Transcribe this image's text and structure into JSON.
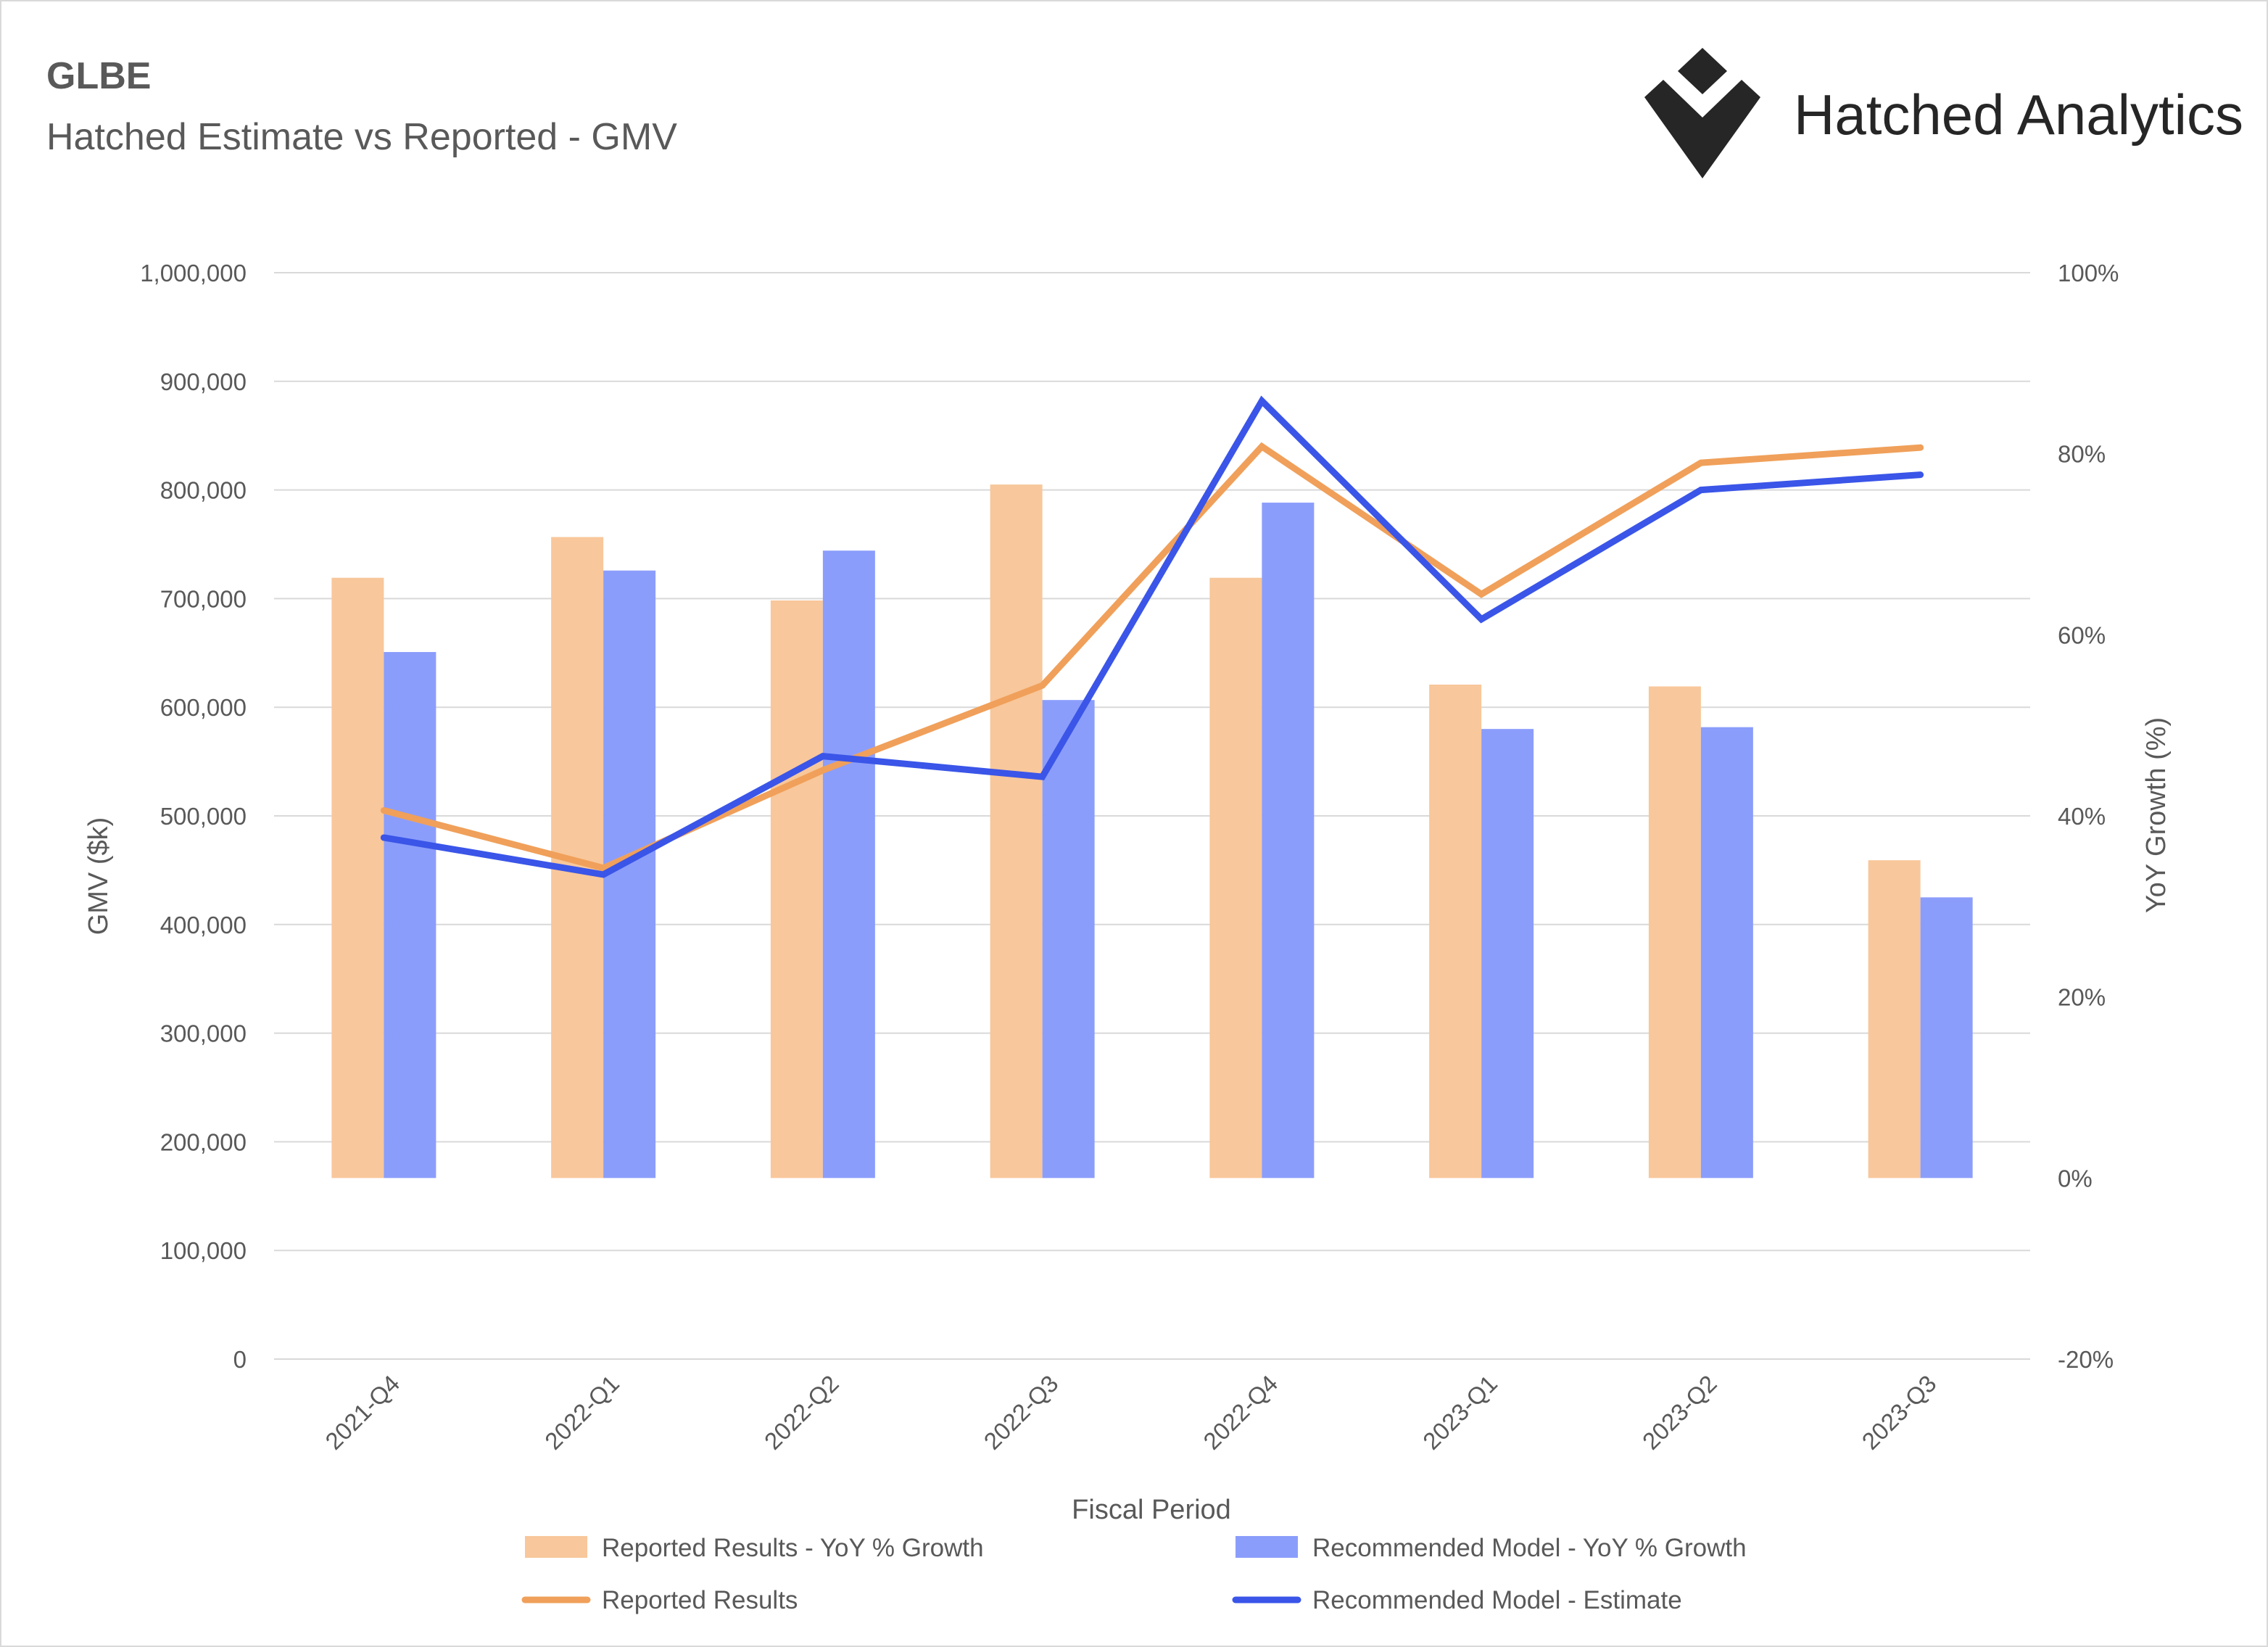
{
  "header": {
    "title": "GLBE",
    "subtitle": "Hatched Estimate vs Reported - GMV",
    "brand_name": "Hatched Analytics",
    "logo_icon": "hatched-analytics-logo-icon"
  },
  "chart_data": {
    "type": "bar",
    "title": "GLBE",
    "subtitle": "Hatched Estimate vs Reported - GMV",
    "xlabel": "Fiscal Period",
    "ylabel": "GMV ($k)",
    "y2label": "YoY Growth (%)",
    "categories": [
      "2021-Q4",
      "2022-Q1",
      "2022-Q2",
      "2022-Q3",
      "2022-Q4",
      "2023-Q1",
      "2023-Q2",
      "2023-Q3"
    ],
    "ylim": [
      0,
      1000000
    ],
    "y2lim": [
      -20,
      100
    ],
    "y_ticks": [
      "0",
      "100,000",
      "200,000",
      "300,000",
      "400,000",
      "500,000",
      "600,000",
      "700,000",
      "800,000",
      "900,000",
      "1,000,000"
    ],
    "y2_ticks": [
      "-20%",
      "0%",
      "20%",
      "40%",
      "60%",
      "80%",
      "100%"
    ],
    "grid": true,
    "legend_position": "bottom",
    "series": [
      {
        "name": "Reported Results - YoY % Growth",
        "type": "bar",
        "axis": "right",
        "color": "#f8c79b",
        "values": [
          66.3,
          70.8,
          63.8,
          76.6,
          66.3,
          54.5,
          54.3,
          35.1
        ]
      },
      {
        "name": "Recommended Model - YoY % Growth",
        "type": "bar",
        "axis": "right",
        "color": "#8b9dfb",
        "values": [
          58.1,
          67.1,
          69.3,
          52.8,
          74.6,
          49.6,
          49.8,
          31.0
        ]
      },
      {
        "name": "Reported Results",
        "type": "line",
        "axis": "left",
        "color": "#f0a05a",
        "values": [
          505000,
          452000,
          542000,
          620000,
          840000,
          704000,
          825000,
          839000
        ]
      },
      {
        "name": "Recommended Model - Estimate",
        "type": "line",
        "axis": "left",
        "color": "#3a55e8",
        "values": [
          480000,
          446000,
          555000,
          536000,
          882000,
          681000,
          800000,
          814000
        ]
      }
    ]
  }
}
